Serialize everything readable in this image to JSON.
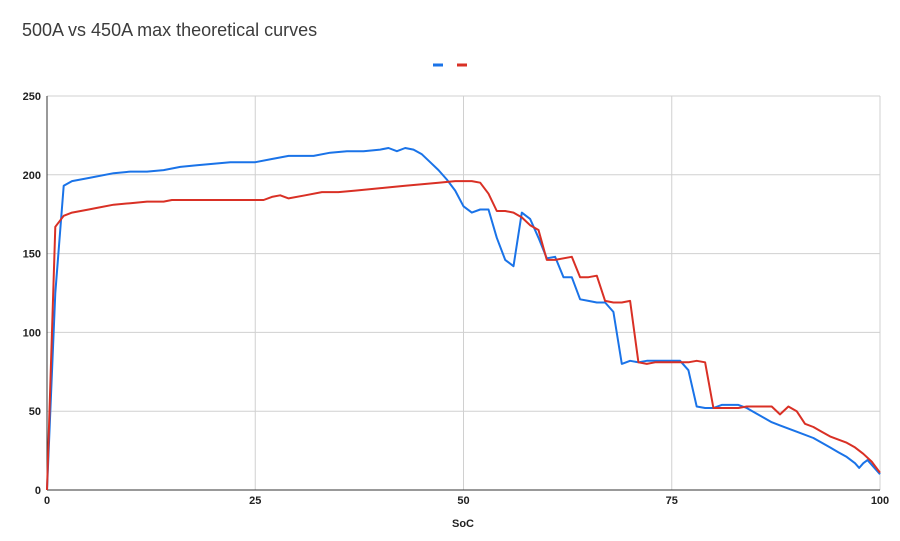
{
  "chart_data": {
    "type": "line",
    "title": "500A vs 450A max theoretical curves",
    "xlabel": "SoC",
    "ylabel": "",
    "xlim": [
      0,
      100
    ],
    "ylim": [
      0,
      250
    ],
    "xticks": [
      0,
      25,
      50,
      75,
      100
    ],
    "yticks": [
      0,
      50,
      100,
      150,
      200,
      250
    ],
    "grid": true,
    "legend": "top-center",
    "series": [
      {
        "color": "#1a73e8",
        "points": [
          [
            0,
            0
          ],
          [
            1,
            125
          ],
          [
            2,
            193
          ],
          [
            3,
            196
          ],
          [
            5,
            198
          ],
          [
            8,
            201
          ],
          [
            10,
            202
          ],
          [
            12,
            202
          ],
          [
            14,
            203
          ],
          [
            16,
            205
          ],
          [
            18,
            206
          ],
          [
            20,
            207
          ],
          [
            22,
            208
          ],
          [
            25,
            208
          ],
          [
            27,
            210
          ],
          [
            29,
            212
          ],
          [
            30,
            212
          ],
          [
            32,
            212
          ],
          [
            34,
            214
          ],
          [
            36,
            215
          ],
          [
            38,
            215
          ],
          [
            40,
            216
          ],
          [
            41,
            217
          ],
          [
            42,
            215
          ],
          [
            43,
            217
          ],
          [
            44,
            216
          ],
          [
            45,
            213
          ],
          [
            46,
            208
          ],
          [
            47,
            203
          ],
          [
            48,
            197
          ],
          [
            49,
            190
          ],
          [
            50,
            180
          ],
          [
            51,
            176
          ],
          [
            52,
            178
          ],
          [
            53,
            178
          ],
          [
            54,
            160
          ],
          [
            55,
            146
          ],
          [
            56,
            142
          ],
          [
            57,
            176
          ],
          [
            58,
            172
          ],
          [
            59,
            160
          ],
          [
            60,
            147
          ],
          [
            61,
            148
          ],
          [
            62,
            135
          ],
          [
            63,
            135
          ],
          [
            64,
            121
          ],
          [
            65,
            120
          ],
          [
            66,
            119
          ],
          [
            67,
            119
          ],
          [
            68,
            113
          ],
          [
            69,
            80
          ],
          [
            70,
            82
          ],
          [
            71,
            81
          ],
          [
            72,
            82
          ],
          [
            74,
            82
          ],
          [
            75,
            82
          ],
          [
            76,
            82
          ],
          [
            77,
            76
          ],
          [
            78,
            53
          ],
          [
            79,
            52
          ],
          [
            80,
            52
          ],
          [
            81,
            54
          ],
          [
            82,
            54
          ],
          [
            83,
            54
          ],
          [
            84,
            52
          ],
          [
            85,
            49
          ],
          [
            86,
            46
          ],
          [
            87,
            43
          ],
          [
            88,
            41
          ],
          [
            90,
            37
          ],
          [
            92,
            33
          ],
          [
            94,
            27
          ],
          [
            95,
            24
          ],
          [
            96,
            21
          ],
          [
            97,
            17
          ],
          [
            97.5,
            14
          ],
          [
            98,
            17
          ],
          [
            98.5,
            19
          ],
          [
            99,
            16
          ],
          [
            100,
            10
          ]
        ]
      },
      {
        "color": "#d93025",
        "points": [
          [
            0,
            0
          ],
          [
            1,
            167
          ],
          [
            2,
            174
          ],
          [
            3,
            176
          ],
          [
            5,
            178
          ],
          [
            6,
            179
          ],
          [
            8,
            181
          ],
          [
            10,
            182
          ],
          [
            12,
            183
          ],
          [
            14,
            183
          ],
          [
            15,
            184
          ],
          [
            18,
            184
          ],
          [
            20,
            184
          ],
          [
            25,
            184
          ],
          [
            26,
            184
          ],
          [
            27,
            186
          ],
          [
            28,
            187
          ],
          [
            29,
            185
          ],
          [
            31,
            187
          ],
          [
            33,
            189
          ],
          [
            35,
            189
          ],
          [
            37,
            190
          ],
          [
            39,
            191
          ],
          [
            41,
            192
          ],
          [
            43,
            193
          ],
          [
            45,
            194
          ],
          [
            47,
            195
          ],
          [
            49,
            196
          ],
          [
            50,
            196
          ],
          [
            51,
            196
          ],
          [
            52,
            195
          ],
          [
            53,
            188
          ],
          [
            54,
            177
          ],
          [
            55,
            177
          ],
          [
            56,
            176
          ],
          [
            57,
            173
          ],
          [
            58,
            168
          ],
          [
            59,
            165
          ],
          [
            60,
            146
          ],
          [
            61,
            146
          ],
          [
            63,
            148
          ],
          [
            64,
            135
          ],
          [
            65,
            135
          ],
          [
            66,
            136
          ],
          [
            67,
            120
          ],
          [
            68,
            119
          ],
          [
            69,
            119
          ],
          [
            70,
            120
          ],
          [
            71,
            81
          ],
          [
            72,
            80
          ],
          [
            73,
            81
          ],
          [
            75,
            81
          ],
          [
            76,
            81
          ],
          [
            77,
            81
          ],
          [
            78,
            82
          ],
          [
            79,
            81
          ],
          [
            80,
            52
          ],
          [
            81,
            52
          ],
          [
            83,
            52
          ],
          [
            84,
            53
          ],
          [
            86,
            53
          ],
          [
            87,
            53
          ],
          [
            88,
            48
          ],
          [
            89,
            53
          ],
          [
            90,
            50
          ],
          [
            91,
            42
          ],
          [
            92,
            40
          ],
          [
            93,
            37
          ],
          [
            94,
            34
          ],
          [
            95,
            32
          ],
          [
            96,
            30
          ],
          [
            97,
            27
          ],
          [
            98,
            23
          ],
          [
            99,
            18
          ],
          [
            100,
            11
          ]
        ]
      }
    ]
  }
}
